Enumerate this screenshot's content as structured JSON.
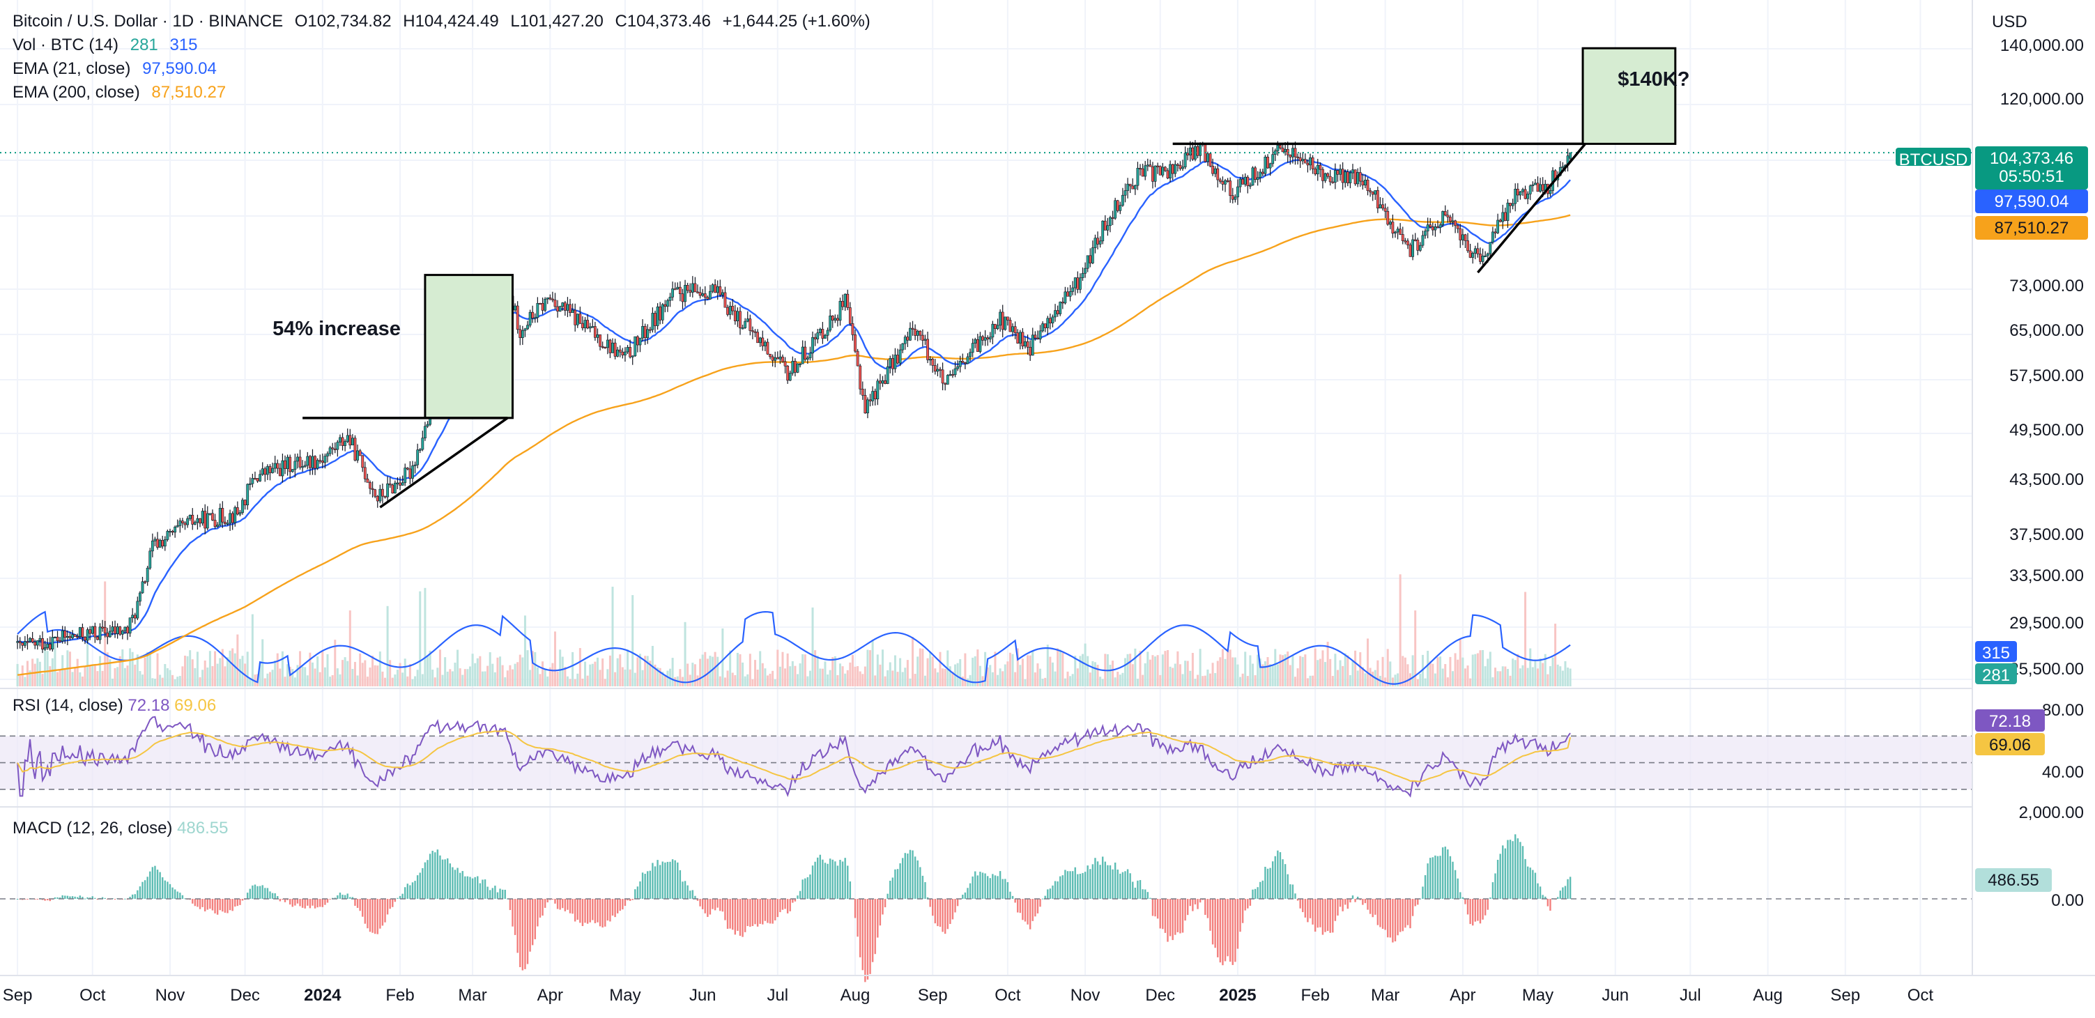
{
  "header": {
    "title": "Bitcoin / U.S. Dollar · 1D · BINANCE",
    "open": "O102,734.82",
    "high": "H104,424.49",
    "low": "L101,427.20",
    "close": "C104,373.46",
    "change": "+1,644.25 (+1.60%)"
  },
  "indicators": {
    "vol_label": "Vol · BTC (14)",
    "vol_value1": "281",
    "vol_value2": "315",
    "ema21_label": "EMA (21, close)",
    "ema21_value": "97,590.04",
    "ema200_label": "EMA (200, close)",
    "ema200_value": "87,510.27",
    "rsi_label": "RSI (14, close)",
    "rsi_value": "72.18",
    "rsi_ma_value": "69.06",
    "macd_label": "MACD (12, 26, close)",
    "macd_value": "486.55"
  },
  "price_scale": {
    "currency": "USD",
    "ticks": [
      "140,000.00",
      "120,000.00",
      "73,000.00",
      "65,000.00",
      "57,500.00",
      "49,500.00",
      "43,500.00",
      "37,500.00",
      "33,500.00",
      "29,500.00",
      "25,500.00"
    ]
  },
  "badges": {
    "symbol": "BTCUSD",
    "last_price": "104,373.46",
    "countdown": "05:50:51",
    "ema21": "97,590.04",
    "ema200": "87,510.27",
    "vol_ma": "315",
    "vol": "281",
    "rsi": "72.18",
    "rsi_ma": "69.06",
    "macd": "486.55"
  },
  "rsi_scale": {
    "ticks": [
      "80.00",
      "40.00"
    ]
  },
  "macd_scale": {
    "ticks": [
      "2,000.00",
      "0.00"
    ]
  },
  "time_axis": [
    "Sep",
    "Oct",
    "Nov",
    "Dec",
    "2024",
    "Feb",
    "Mar",
    "Apr",
    "May",
    "Jun",
    "Jul",
    "Aug",
    "Sep",
    "Oct",
    "Nov",
    "Dec",
    "2025",
    "Feb",
    "Mar",
    "Apr",
    "May",
    "Jun",
    "Jul",
    "Aug",
    "Sep",
    "Oct"
  ],
  "annotations": {
    "increase_label": "54% increase",
    "target_label": "$140K?"
  },
  "colors": {
    "up": "#26a69a",
    "down": "#ef5350",
    "ema21": "#2962ff",
    "ema200": "#f7a21b",
    "rsi": "#7e57c2",
    "rsi_ma": "#f5c542",
    "macd_badge": "#b2dfdb",
    "box_fill": "#d6ecd2",
    "last_price": "#089981"
  },
  "chart_data": {
    "type": "candlestick",
    "title": "Bitcoin / U.S. Dollar · 1D · BINANCE",
    "ylabel": "USD",
    "scale": "log",
    "ylim": [
      25500,
      142000
    ],
    "x_range": [
      "2023-09-01",
      "2025-10-15"
    ],
    "last": {
      "open": 102734.82,
      "high": 104424.49,
      "low": 101427.2,
      "close": 104373.46
    },
    "price_path": [
      [
        "2023-09-01",
        25900
      ],
      [
        "2023-09-15",
        26500
      ],
      [
        "2023-10-01",
        27000
      ],
      [
        "2023-10-15",
        27200
      ],
      [
        "2023-10-20",
        29800
      ],
      [
        "2023-10-25",
        34500
      ],
      [
        "2023-11-10",
        37000
      ],
      [
        "2023-11-28",
        37800
      ],
      [
        "2023-12-05",
        42000
      ],
      [
        "2023-12-20",
        43500
      ],
      [
        "2024-01-01",
        44200
      ],
      [
        "2024-01-11",
        47000
      ],
      [
        "2024-01-23",
        39500
      ],
      [
        "2024-02-05",
        42500
      ],
      [
        "2024-02-15",
        52000
      ],
      [
        "2024-02-28",
        61000
      ],
      [
        "2024-03-05",
        66000
      ],
      [
        "2024-03-14",
        72500
      ],
      [
        "2024-03-20",
        63500
      ],
      [
        "2024-04-01",
        69500
      ],
      [
        "2024-04-15",
        64000
      ],
      [
        "2024-05-01",
        58500
      ],
      [
        "2024-05-20",
        70000
      ],
      [
        "2024-06-05",
        71000
      ],
      [
        "2024-06-25",
        61000
      ],
      [
        "2024-07-05",
        56000
      ],
      [
        "2024-07-28",
        68500
      ],
      [
        "2024-08-05",
        51000
      ],
      [
        "2024-08-25",
        64000
      ],
      [
        "2024-09-06",
        54000
      ],
      [
        "2024-09-27",
        65500
      ],
      [
        "2024-10-10",
        60500
      ],
      [
        "2024-10-29",
        72500
      ],
      [
        "2024-11-11",
        88000
      ],
      [
        "2024-11-22",
        98500
      ],
      [
        "2024-12-05",
        99000
      ],
      [
        "2024-12-17",
        106000
      ],
      [
        "2024-12-30",
        93000
      ],
      [
        "2025-01-20",
        106000
      ],
      [
        "2025-02-02",
        99000
      ],
      [
        "2025-02-20",
        96500
      ],
      [
        "2025-03-03",
        86000
      ],
      [
        "2025-03-10",
        79000
      ],
      [
        "2025-03-25",
        87500
      ],
      [
        "2025-04-08",
        76500
      ],
      [
        "2025-04-22",
        93500
      ],
      [
        "2025-05-05",
        95000
      ],
      [
        "2025-05-14",
        104373.46
      ]
    ],
    "ema21": {
      "last": 97590.04
    },
    "ema200": {
      "last": 87510.27
    },
    "volume": {
      "last": 281,
      "ma14": 315
    },
    "rsi": {
      "last": 72.18,
      "ma": 69.06,
      "ylim": [
        20,
        90
      ],
      "bands": [
        70,
        50,
        30
      ]
    },
    "macd": {
      "last": 486.55,
      "ylim": [
        -2000,
        2000
      ]
    },
    "annotations": [
      {
        "text": "54% increase",
        "type": "box",
        "x": [
          "2024-02-11",
          "2024-03-17"
        ],
        "y": [
          49500,
          74000
        ]
      },
      {
        "text": "$140K?",
        "type": "box",
        "x": [
          "2025-05-19",
          "2025-06-25"
        ],
        "y": [
          107000,
          140000
        ]
      },
      {
        "type": "hline",
        "y": 49500,
        "x": [
          "2023-12-24",
          "2024-03-15"
        ]
      },
      {
        "type": "hline",
        "y": 107000,
        "x": [
          "2024-12-06",
          "2025-05-19"
        ]
      },
      {
        "type": "trendline",
        "points": [
          [
            "2024-01-24",
            38500
          ],
          [
            "2024-03-15",
            49500
          ]
        ]
      },
      {
        "type": "trendline",
        "points": [
          [
            "2025-04-07",
            74500
          ],
          [
            "2025-05-20",
            107000
          ]
        ]
      }
    ]
  }
}
